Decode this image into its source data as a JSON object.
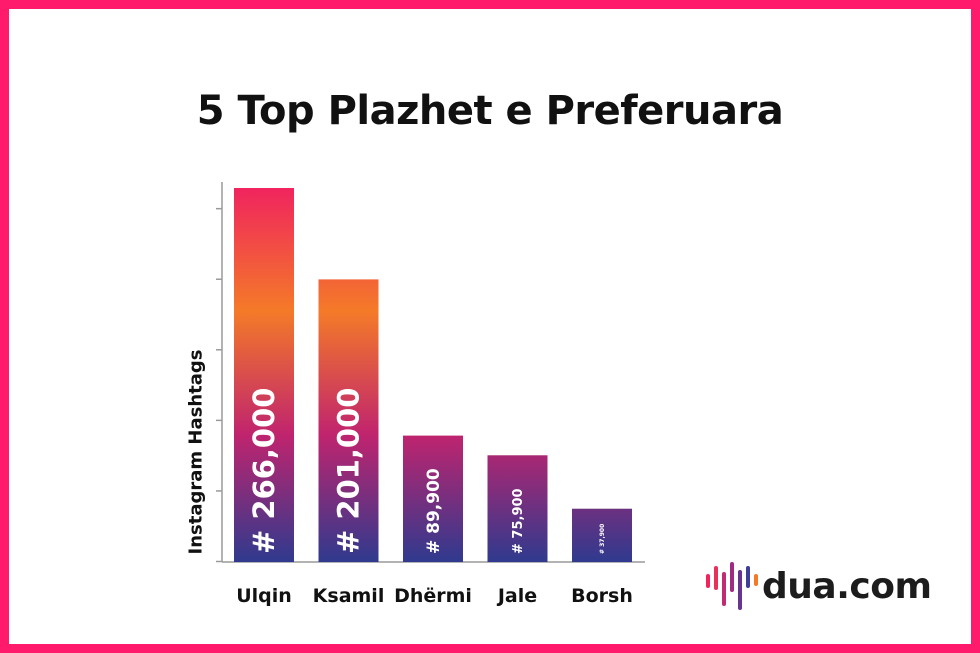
{
  "chart_data": {
    "type": "bar",
    "title": "5 Top Plazhet e Preferuara",
    "ylabel": "Instagram Hashtags",
    "xlabel": "",
    "categories": [
      "Ulqin",
      "Ksamil",
      "Dhërmi",
      "Jale",
      "Borsh"
    ],
    "values": [
      266000,
      201000,
      89900,
      75900,
      37900
    ],
    "data_labels": [
      "# 266,000",
      "# 201,000",
      "# 89,900",
      "# 75,900",
      "# 37,900"
    ],
    "ylim": [
      0,
      266000
    ],
    "grid": false,
    "legend": "none"
  },
  "logo": {
    "text": "dua.com"
  },
  "colors": {
    "border": "#ff1a6c",
    "gradient_top": "#f0245e",
    "gradient_mid": "#f47a28",
    "gradient_lower": "#c0246e",
    "gradient_bottom": "#2f3a8e"
  }
}
